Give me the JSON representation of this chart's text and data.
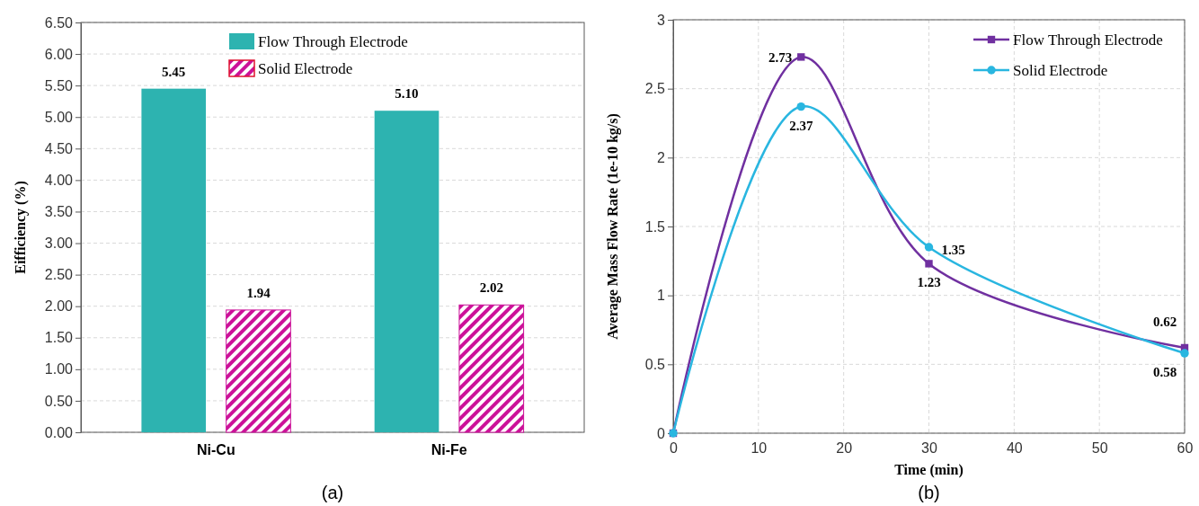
{
  "chart_data": [
    {
      "type": "bar",
      "ylabel": "Eifficiency (%)",
      "categories": [
        "Ni-Cu",
        "Ni-Fe"
      ],
      "series": [
        {
          "name": "Flow Through Electrode",
          "color": "#2db3b0",
          "values": [
            5.45,
            5.1
          ],
          "value_labels": [
            "5.45",
            "5.10"
          ]
        },
        {
          "name": "Solid Electrode",
          "color": "#cc1199",
          "values": [
            1.94,
            2.02
          ],
          "value_labels": [
            "1.94",
            "2.02"
          ]
        }
      ],
      "ylim": [
        0,
        6.5
      ],
      "yticks": [
        {
          "value": 0,
          "label": "0.00"
        },
        {
          "value": 0.5,
          "label": "0.50"
        },
        {
          "value": 1,
          "label": "1.00"
        },
        {
          "value": 1.5,
          "label": "1.50"
        },
        {
          "value": 2,
          "label": "2.00"
        },
        {
          "value": 2.5,
          "label": "2.50"
        },
        {
          "value": 3,
          "label": "3.00"
        },
        {
          "value": 3.5,
          "label": "3.50"
        },
        {
          "value": 4,
          "label": "4.00"
        },
        {
          "value": 4.5,
          "label": "4.50"
        },
        {
          "value": 5,
          "label": "5.00"
        },
        {
          "value": 5.5,
          "label": "5.50"
        },
        {
          "value": 6,
          "label": "6.00"
        },
        {
          "value": 6.5,
          "label": "6.50"
        }
      ],
      "grid": "y",
      "legend": "top",
      "annotations": [
        "(a)"
      ]
    },
    {
      "type": "line",
      "xlabel": "Time (min)",
      "ylabel": "Average Mass Flow Rate (1e-10 kg/s)",
      "x": [
        0,
        15,
        30,
        60
      ],
      "series": [
        {
          "name": "Flow Through Electrode",
          "color": "#7030a0",
          "marker": "square",
          "values": [
            0,
            2.73,
            1.23,
            0.62
          ],
          "value_labels": [
            null,
            "2.73",
            "1.23",
            "0.62"
          ]
        },
        {
          "name": "Solid Electrode",
          "color": "#29b6e0",
          "marker": "circle",
          "values": [
            0,
            2.37,
            1.35,
            0.58
          ],
          "value_labels": [
            null,
            "2.37",
            "1.35",
            "0.58"
          ]
        }
      ],
      "xlim": [
        0,
        60
      ],
      "xticks": [
        0,
        10,
        20,
        30,
        40,
        50,
        60
      ],
      "ylim": [
        0,
        3
      ],
      "yticks": [
        0,
        0.5,
        1,
        1.5,
        2,
        2.5,
        3
      ],
      "grid": true,
      "legend": "top right",
      "annotations": [
        "(b)"
      ]
    }
  ]
}
